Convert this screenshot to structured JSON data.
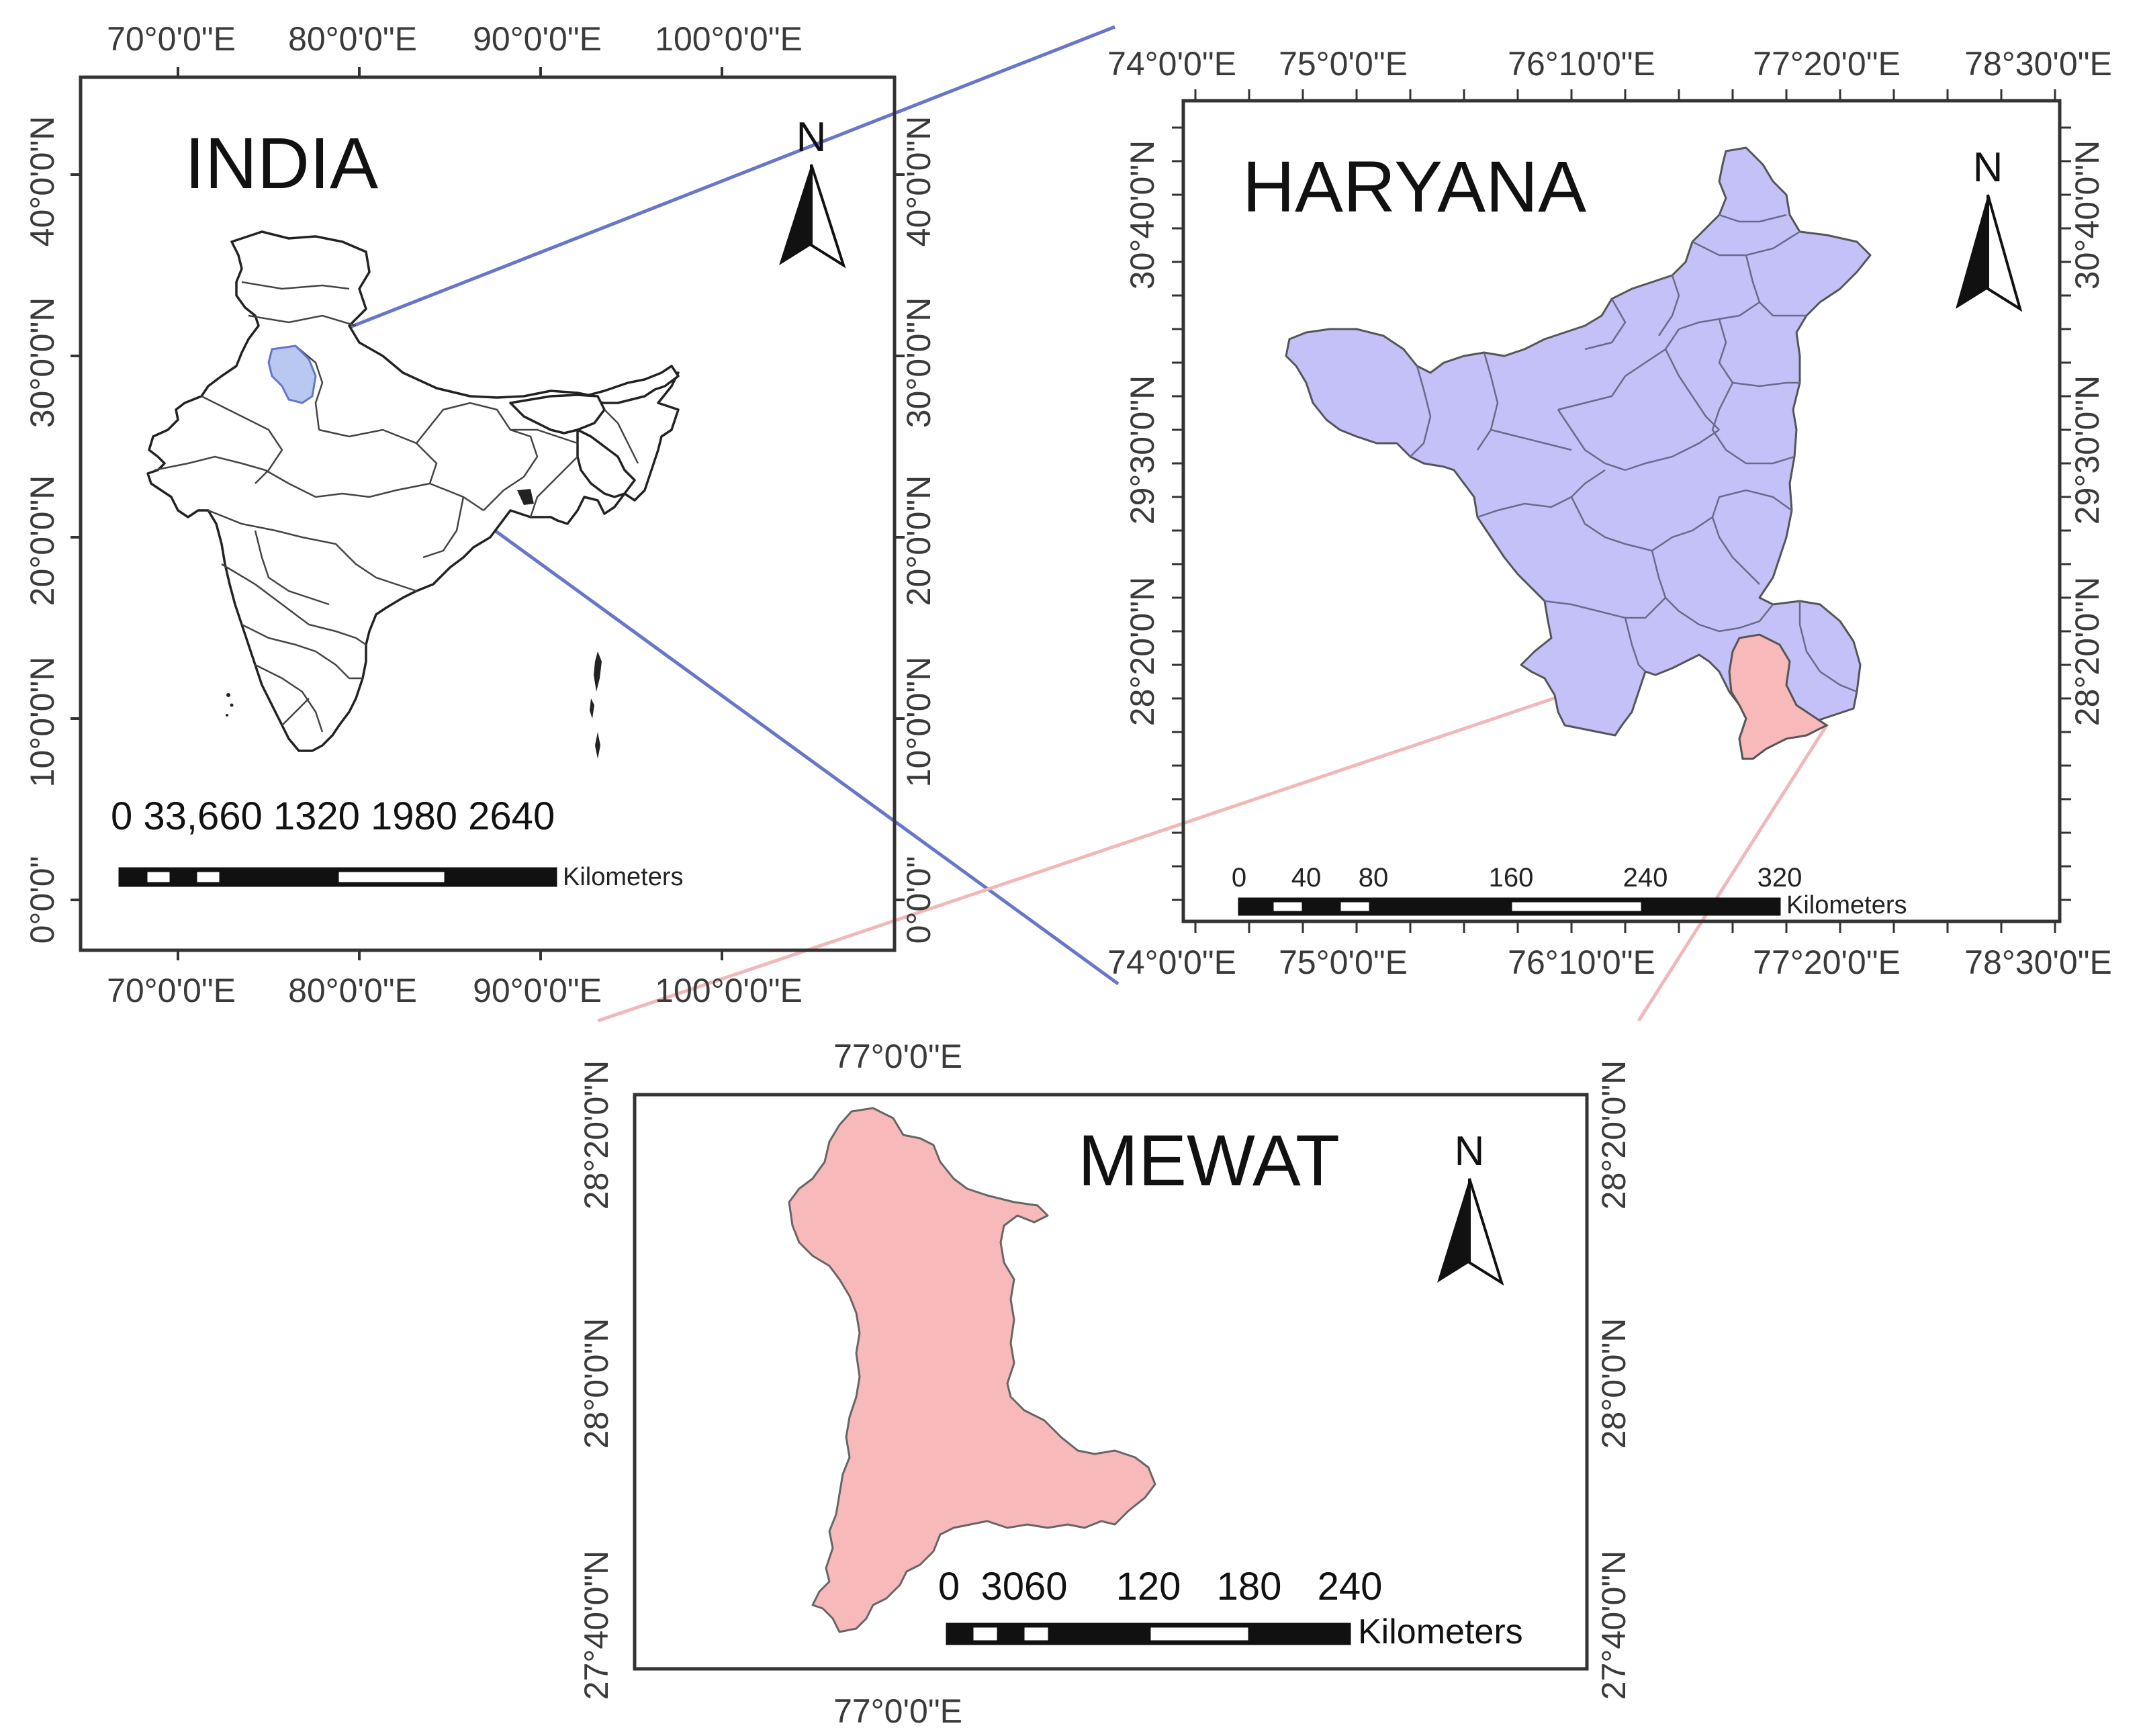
{
  "colors": {
    "india_highlight": "#b8c8f0",
    "haryana_fill": "#c4c0f8",
    "mewat_fill": "#f7b9b9",
    "zoom_line_india": "#6676c8",
    "zoom_line_haryana": "#f0b8b8"
  },
  "icons": [
    "north-arrow-icon",
    "scale-bar-icon"
  ],
  "india": {
    "title": "INDIA",
    "north": "N",
    "lon_labels": [
      "70°0'0\"E",
      "80°0'0\"E",
      "90°0'0\"E",
      "100°0'0\"E"
    ],
    "lat_labels": [
      "40°0'0\"N",
      "30°0'0\"N",
      "20°0'0\"N",
      "10°0'0\"N",
      "0°0'0\""
    ],
    "scale_numbers": "0 33,660 1320 1980 2640",
    "scale_unit": "Kilometers"
  },
  "haryana": {
    "title": "HARYANA",
    "north": "N",
    "lon_labels": [
      "74°0'0\"E",
      "75°0'0\"E",
      "76°10'0\"E",
      "77°20'0\"E",
      "78°30'0\"E"
    ],
    "lat_labels": [
      "30°40'0\"N",
      "29°30'0\"N",
      "28°20'0\"N"
    ],
    "scale_numbers": [
      "0",
      "40",
      "80",
      "160",
      "240",
      "320"
    ],
    "scale_unit": "Kilometers"
  },
  "mewat": {
    "title": "MEWAT",
    "north": "N",
    "lon_labels": [
      "77°0'0\"E",
      "77°0'0\"E"
    ],
    "lat_labels": [
      "28°20'0\"N",
      "28°0'0\"N",
      "27°40'0\"N"
    ],
    "scale_numbers": [
      "0",
      "3060",
      "120",
      "180",
      "240"
    ],
    "scale_unit": "Kilometers"
  }
}
